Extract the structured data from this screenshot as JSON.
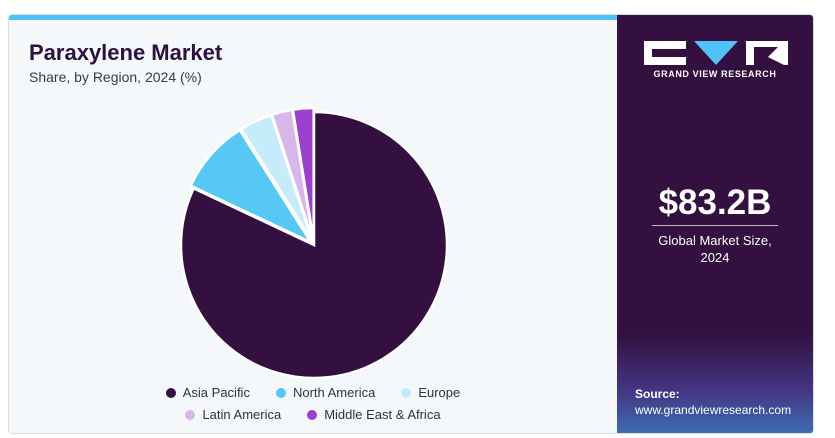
{
  "header": {
    "title": "Paraxylene Market",
    "subtitle": "Share, by Region, 2024 (%)"
  },
  "brand": {
    "name": "GRAND VIEW RESEARCH"
  },
  "stats": {
    "market_size": "$83.2B",
    "market_label_line1": "Global Market Size,",
    "market_label_line2": "2024"
  },
  "source": {
    "label": "Source:",
    "url": "www.grandviewresearch.com"
  },
  "colors": {
    "accent_bar": "#4fc3f7",
    "panel": "#33103f"
  },
  "chart_data": {
    "type": "pie",
    "title": "Paraxylene Market",
    "subtitle": "Share, by Region, 2024 (%)",
    "legend_position": "bottom",
    "categories": [
      "Asia Pacific",
      "North America",
      "Europe",
      "Latin America",
      "Middle East & Africa"
    ],
    "values": [
      82.0,
      9.0,
      4.0,
      2.5,
      2.5
    ],
    "colors": [
      "#33103f",
      "#56c8f5",
      "#c6ecfb",
      "#d7b6ea",
      "#9b3fd0"
    ]
  }
}
